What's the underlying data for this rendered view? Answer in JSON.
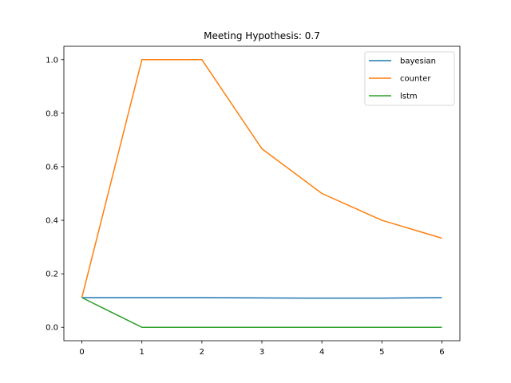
{
  "chart_data": {
    "type": "line",
    "title": "Meeting Hypothesis: 0.7",
    "xlabel": "",
    "ylabel": "",
    "x": [
      0,
      1,
      2,
      3,
      4,
      5,
      6
    ],
    "xlim": [
      -0.3,
      6.3
    ],
    "ylim": [
      -0.05,
      1.05
    ],
    "xticks": [
      0,
      1,
      2,
      3,
      4,
      5,
      6
    ],
    "yticks": [
      0.0,
      0.2,
      0.4,
      0.6,
      0.8,
      1.0
    ],
    "xtick_labels": [
      "0",
      "1",
      "2",
      "3",
      "4",
      "5",
      "6"
    ],
    "ytick_labels": [
      "0.0",
      "0.2",
      "0.4",
      "0.6",
      "0.8",
      "1.0"
    ],
    "grid": false,
    "legend_position": "top-right",
    "series": [
      {
        "name": "bayesian",
        "color": "#1f77b4",
        "values": [
          0.111,
          0.111,
          0.111,
          0.11,
          0.109,
          0.109,
          0.111
        ]
      },
      {
        "name": "counter",
        "color": "#ff7f0e",
        "values": [
          0.111,
          1.0,
          1.0,
          0.667,
          0.5,
          0.4,
          0.333
        ]
      },
      {
        "name": "lstm",
        "color": "#2ca02c",
        "values": [
          0.111,
          0.0,
          0.0,
          0.0,
          0.0,
          0.0,
          0.0
        ]
      }
    ]
  }
}
